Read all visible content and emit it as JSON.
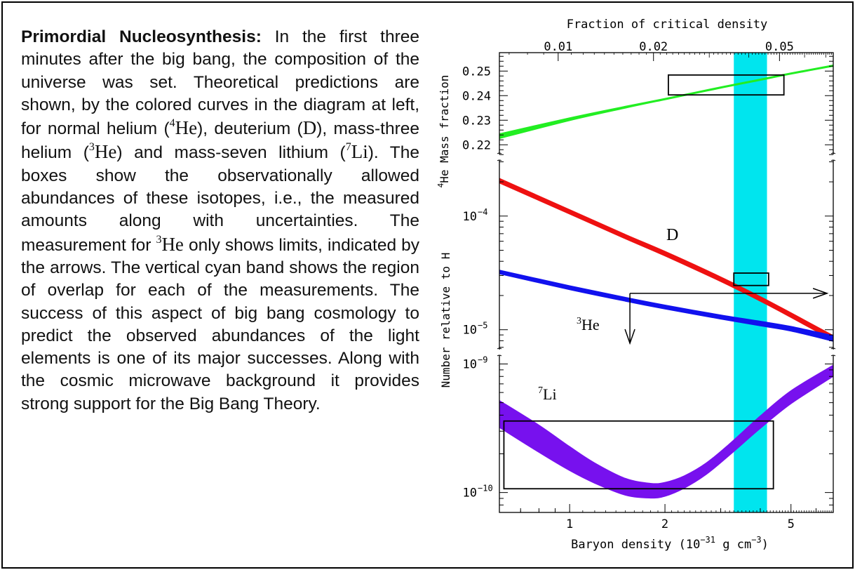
{
  "caption": {
    "lead": "Primordial Nucleosynthesis:",
    "parts": [
      " In the first three minutes after the big bang, the composition of the universe was set. Theoretical predictions are shown, by the colored curves in the diagram at left, for normal helium (",
      "), deuterium (",
      "), mass-three helium (",
      ") and mass-seven lithium (",
      "). The boxes show the observationally allowed abundances of these isotopes, i.e., the measured amounts along with uncertainties. The measurement for ",
      " only shows limits, indicated by the arrows. The vertical cyan band shows the region of overlap for each of the measurements. The success of this aspect of big bang cosmology to predict the observed abundances of the light elements is one of its major successes. Along with the cosmic microwave background it provides strong support for the Big Bang Theory."
    ],
    "iso_he4_mass": "4",
    "iso_he4_sym": "He",
    "iso_d": "D",
    "iso_he3_mass": "3",
    "iso_he3_sym": "He",
    "iso_li7_mass": "7",
    "iso_li7_sym": "Li",
    "iso_he3b_mass": "3",
    "iso_he3b_sym": "He"
  },
  "chart_data": {
    "type": "line",
    "top_axis": {
      "label": "Fraction of critical density",
      "ticks": [
        "0.01",
        "0.02",
        "0.05"
      ],
      "tick_values": [
        0.01,
        0.02,
        0.05
      ]
    },
    "xaxis": {
      "label_main": "Baryon density (10",
      "label_exp1": "−31",
      "label_mid": " g cm",
      "label_exp2": "−3",
      "label_end": ")",
      "scale": "log",
      "ticks": [
        "1",
        "2",
        "5"
      ],
      "tick_values": [
        1,
        2,
        5
      ],
      "range": [
        0.6,
        6.8
      ]
    },
    "panels": [
      {
        "id": "he4",
        "ylabel_pre": "4",
        "ylabel": "He Mass fraction",
        "scale": "linear",
        "ylim": [
          0.2155,
          0.2575
        ],
        "ticks": [
          "0.25",
          "0.24",
          "0.23",
          "0.22"
        ],
        "tick_values": [
          0.25,
          0.24,
          0.23,
          0.22
        ]
      },
      {
        "id": "dhe3",
        "ylabel": "Number relative to H",
        "scale": "log",
        "ylim": [
          6.5e-06,
          0.00032
        ],
        "ticks": [
          "10",
          "10"
        ],
        "tick_exps": [
          "−4",
          "−5"
        ],
        "tick_values": [
          0.0001,
          1e-05
        ]
      },
      {
        "id": "li7",
        "scale": "log",
        "ylim": [
          7e-11,
          1.2e-09
        ],
        "ticks": [
          "10",
          "10"
        ],
        "tick_exps": [
          "−9",
          "−10"
        ],
        "tick_values": [
          1e-09,
          1e-10
        ]
      }
    ],
    "band": {
      "x_range": [
        3.3,
        4.2
      ],
      "color": "#00e5ee"
    },
    "series": [
      {
        "name": "",
        "panel": "he4",
        "color": "#22ee22",
        "x": [
          0.6,
          1.0,
          1.5,
          2.0,
          3.0,
          4.0,
          5.0,
          6.8
        ],
        "y_low": [
          0.2225,
          0.2298,
          0.2349,
          0.2383,
          0.243,
          0.2462,
          0.2487,
          0.2519
        ],
        "y_high": [
          0.2245,
          0.231,
          0.2357,
          0.2389,
          0.2436,
          0.2468,
          0.2493,
          0.2525
        ]
      },
      {
        "name": "D",
        "panel": "dhe3",
        "color": "#ee1111",
        "x": [
          0.6,
          1.0,
          1.5,
          2.0,
          3.0,
          4.0,
          5.0,
          6.8
        ],
        "y_low": [
          0.000195,
          0.000104,
          6.3e-05,
          4.45e-05,
          2.65e-05,
          1.78e-05,
          1.28e-05,
          8e-06
        ],
        "y_high": [
          0.000215,
          0.000114,
          6.9e-05,
          4.9e-05,
          2.92e-05,
          1.96e-05,
          1.41e-05,
          8.9e-06
        ]
      },
      {
        "name": "3He",
        "panel": "dhe3",
        "color": "#1111ee",
        "x": [
          0.6,
          1.0,
          1.5,
          2.0,
          3.0,
          4.0,
          5.0,
          6.8
        ],
        "y_low": [
          3.1e-05,
          2.25e-05,
          1.78e-05,
          1.52e-05,
          1.24e-05,
          1.08e-05,
          9.7e-06,
          7.9e-06
        ],
        "y_high": [
          3.35e-05,
          2.44e-05,
          1.93e-05,
          1.65e-05,
          1.35e-05,
          1.19e-05,
          1.07e-05,
          8.9e-06
        ]
      },
      {
        "name": "7Li",
        "panel": "li7",
        "color": "#7711ee",
        "x": [
          0.6,
          0.8,
          1.0,
          1.2,
          1.5,
          1.8,
          2.0,
          2.3,
          2.7,
          3.2,
          4.0,
          5.0,
          6.8
        ],
        "y_low": [
          3.2e-10,
          2.05e-10,
          1.48e-10,
          1.18e-10,
          9.52e-11,
          9.05e-11,
          9.35e-11,
          1.08e-10,
          1.38e-10,
          1.95e-10,
          3.15e-10,
          4.9e-10,
          8e-10
        ],
        "y_high": [
          5.2e-10,
          3.35e-10,
          2.28e-10,
          1.7e-10,
          1.29e-10,
          1.18e-10,
          1.2e-10,
          1.35e-10,
          1.7e-10,
          2.4e-10,
          3.95e-10,
          6.2e-10,
          9.8e-10
        ]
      }
    ],
    "boxes": [
      {
        "panel": "he4",
        "x_range": [
          2.05,
          4.75
        ],
        "y_range": [
          0.2403,
          0.2484
        ]
      },
      {
        "panel": "dhe3",
        "x_range": [
          3.3,
          4.25
        ],
        "y_range": [
          2.45e-05,
          3.15e-05
        ]
      },
      {
        "panel": "li7",
        "x_range": [
          0.62,
          4.4
        ],
        "y_range": [
          1.07e-10,
          3.6e-10
        ]
      }
    ],
    "limits": [
      {
        "panel": "dhe3",
        "type": "right-arrow",
        "x_from": 1.55,
        "x_to": 6.5,
        "y": 2.09e-05
      },
      {
        "panel": "dhe3",
        "type": "down-arrow",
        "x": 1.55,
        "y_from": 2.09e-05,
        "y_to": 7.6e-06
      }
    ],
    "labels": {
      "d": "D",
      "he3_mass": "3",
      "he3_sym": "He",
      "li7_mass": "7",
      "li7_sym": "Li"
    }
  }
}
